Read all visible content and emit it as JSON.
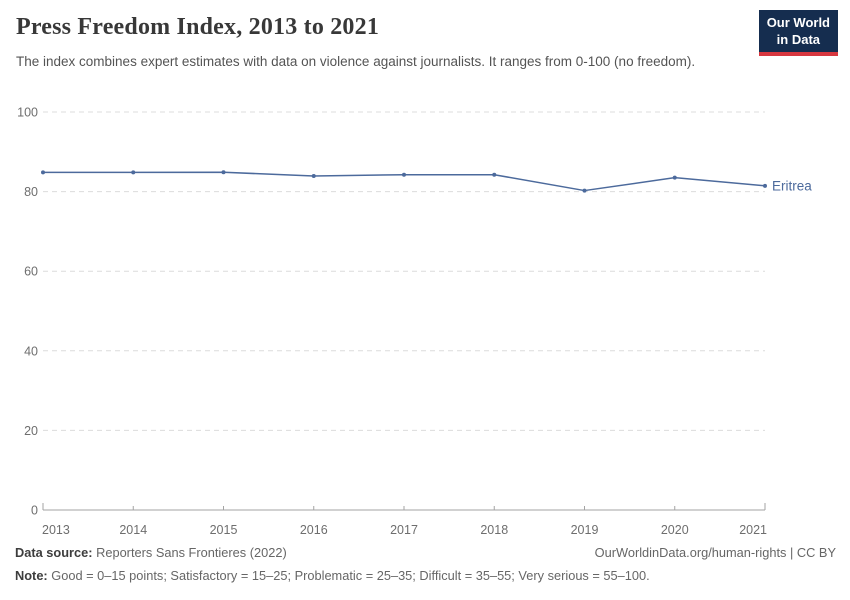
{
  "header": {
    "title": "Press Freedom Index, 2013 to 2021",
    "subtitle": "The index combines expert estimates with data on violence against journalists. It ranges from 0-100 (no freedom).",
    "logo": {
      "line1": "Our World",
      "line2": "in Data",
      "bg_color": "#152d4f",
      "bar_color": "#d7373f"
    }
  },
  "chart_data": {
    "type": "line",
    "title": "Press Freedom Index, 2013 to 2021",
    "x": [
      2013,
      2014,
      2015,
      2016,
      2017,
      2018,
      2019,
      2020,
      2021
    ],
    "series": [
      {
        "name": "Eritrea",
        "color": "#4c6a9c",
        "values": [
          84.83,
          84.83,
          84.86,
          83.92,
          84.24,
          84.24,
          80.26,
          83.5,
          81.45
        ]
      }
    ],
    "xlabel": "",
    "ylabel": "",
    "ylim": [
      0,
      100
    ],
    "yticks": [
      0,
      20,
      40,
      60,
      80,
      100
    ],
    "grid": "dashed horizontal gridlines",
    "grid_color": "#dcdcdc",
    "axis_color": "#a3a3a3",
    "tick_label_color": "#6e6e6e",
    "legend": "entity label at line end"
  },
  "footer": {
    "datasource_label": "Data source:",
    "datasource_text": "Reporters Sans Frontieres (2022)",
    "rights_text": "OurWorldinData.org/human-rights | CC BY",
    "note_label": "Note:",
    "note_text": "Good = 0–15 points; Satisfactory = 15–25; Problematic = 25–35; Difficult = 35–55; Very serious = 55–100."
  }
}
